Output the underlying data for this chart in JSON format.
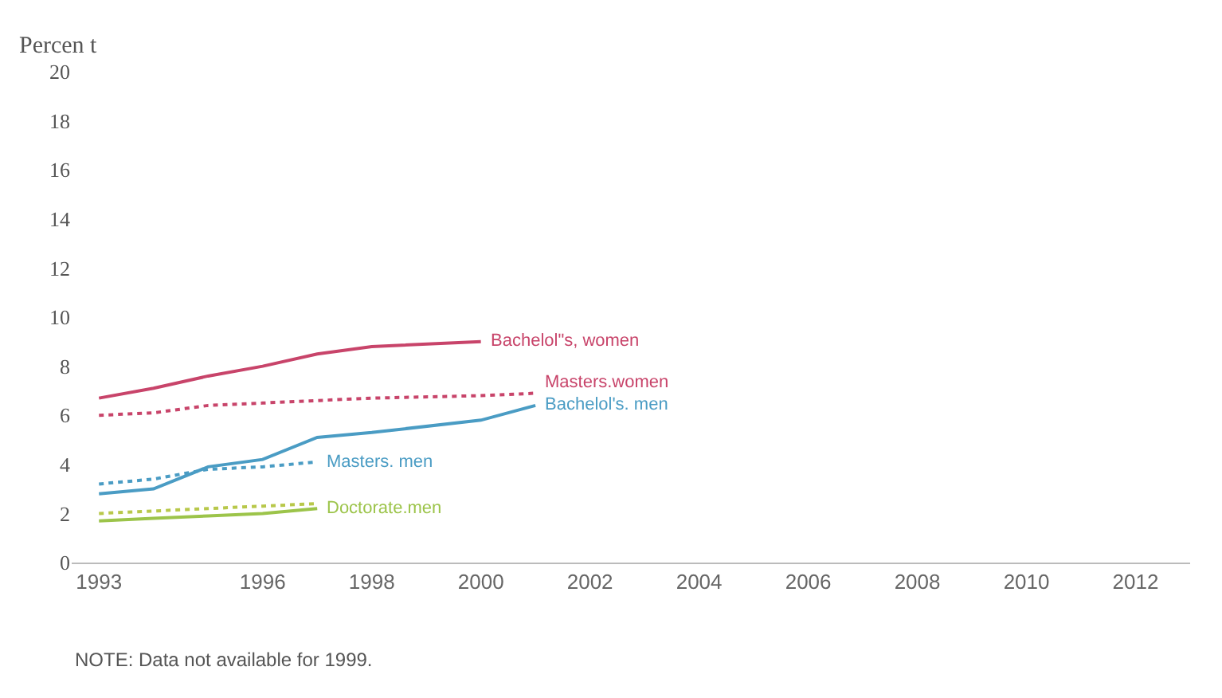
{
  "chart_data": {
    "type": "line",
    "ylabel": "Percen t",
    "x": [
      1993,
      1994,
      1995,
      1996,
      1997,
      1998,
      2000,
      2001
    ],
    "series": [
      {
        "name": "Bachelol\"s, women",
        "color": "#c8446a",
        "line_style": "solid",
        "values": [
          6.7,
          7.1,
          7.6,
          8.0,
          8.5,
          8.8,
          9.0,
          null
        ]
      },
      {
        "name": "Masters.women",
        "color": "#c8446a",
        "line_style": "dotted",
        "values": [
          6.0,
          6.1,
          6.4,
          6.5,
          6.6,
          6.7,
          6.8,
          6.9
        ]
      },
      {
        "name": "Bachelol's. men",
        "color": "#4a9cc4",
        "line_style": "solid",
        "values": [
          2.8,
          3.0,
          3.9,
          4.2,
          5.1,
          5.3,
          5.8,
          6.4
        ]
      },
      {
        "name": "Masters. men",
        "color": "#4a9cc4",
        "line_style": "dotted",
        "values": [
          3.2,
          3.4,
          3.8,
          3.9,
          4.1,
          null,
          null,
          null
        ]
      },
      {
        "color": "#b8c84a",
        "line_style": "dotted",
        "values": [
          2.0,
          2.1,
          2.2,
          2.3,
          2.4,
          null,
          null,
          null
        ]
      },
      {
        "name": "Doctorate.men",
        "color": "#9cc44a",
        "line_style": "solid",
        "values": [
          1.7,
          1.8,
          1.9,
          2.0,
          2.2,
          null,
          null,
          null
        ]
      }
    ],
    "xlim": [
      1992.5,
      2013
    ],
    "xticks": [
      1993,
      1996,
      1998,
      2000,
      2002,
      2004,
      2006,
      2008,
      2010,
      2012
    ],
    "ylim": [
      0,
      20
    ],
    "yticks": [
      0,
      2,
      4,
      6,
      8,
      10,
      12,
      14,
      16,
      18,
      20
    ],
    "grid": false,
    "legend": false,
    "marker": "none",
    "annotations": [
      "NOTE: Data not available for 1999."
    ]
  }
}
